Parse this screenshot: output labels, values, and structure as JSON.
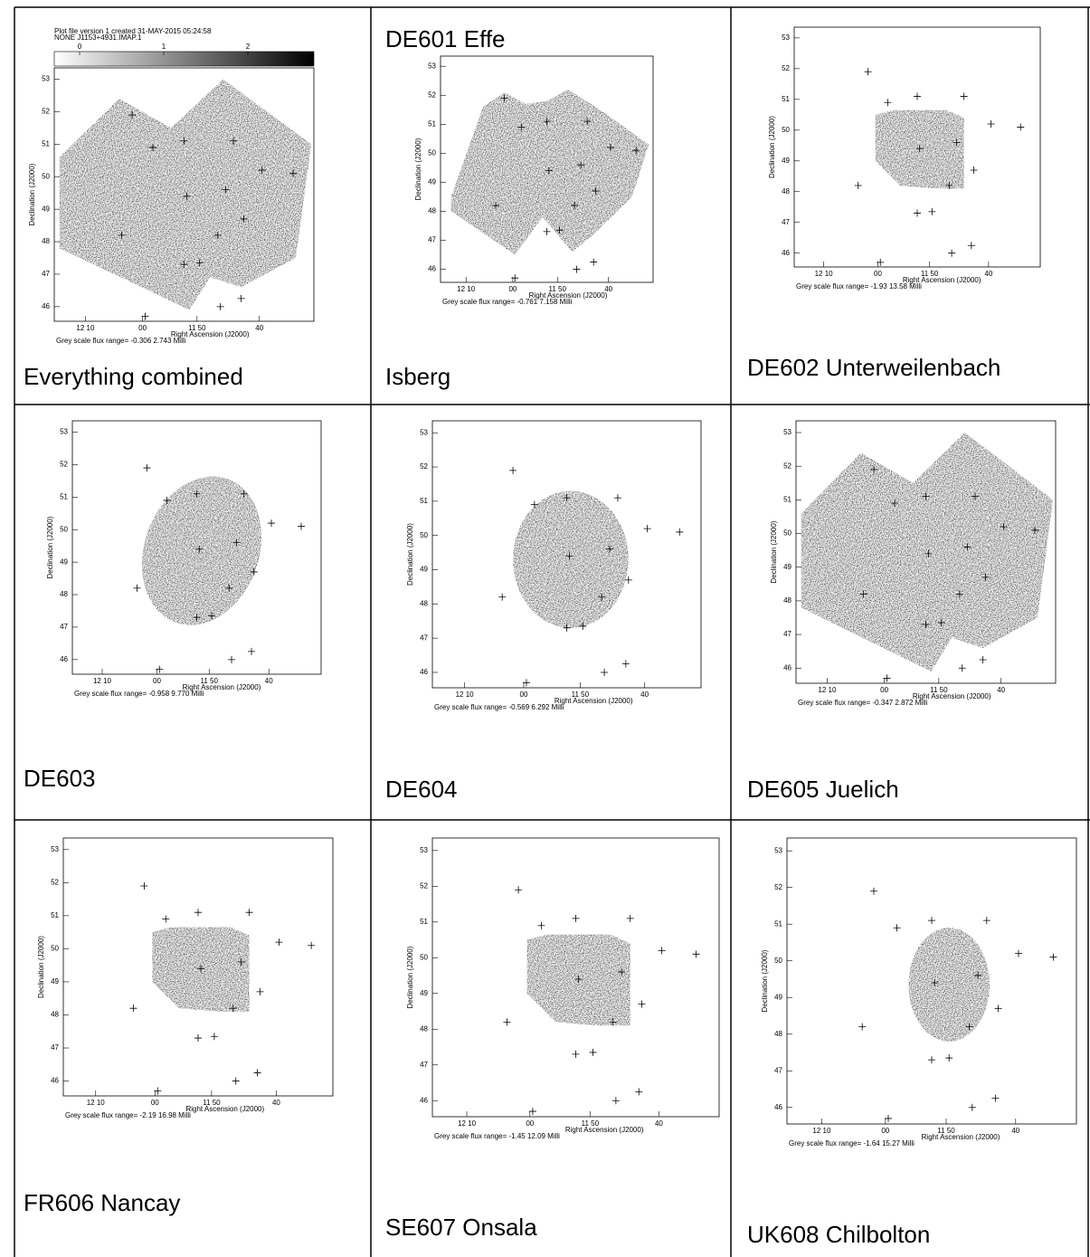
{
  "panels": [
    {
      "caption": "Everything combined",
      "plot": {
        "header": [
          "Plot file version 1  created 31-MAY-2015 05:24:58",
          "NONE  J1153+4931.IMAP.1"
        ],
        "colorbar_ticks": [
          0,
          1,
          2
        ],
        "yticks": [
          53,
          52,
          51,
          50,
          49,
          48,
          47,
          46
        ],
        "xticks": [
          "12 10",
          "00",
          "11 50",
          "40"
        ],
        "ylabel": "Declination (J2000)",
        "xlabel": "Right Ascension (J2000)",
        "flux": "Grey scale flux range= -0.306 2.743 Milli"
      }
    },
    {
      "top_caption": "DE601 Effe",
      "caption": "Isberg",
      "plot": {
        "yticks": [
          53,
          52,
          51,
          50,
          49,
          48,
          47,
          46
        ],
        "xticks": [
          "12 10",
          "00",
          "11 50",
          "40"
        ],
        "ylabel": "Declination (J2000)",
        "xlabel": "Right Ascension (J2000)",
        "flux": "Grey scale flux range= -0.761 7.158 Milli"
      }
    },
    {
      "caption": "DE602 Unterweilenbach",
      "plot": {
        "yticks": [
          53,
          52,
          51,
          50,
          49,
          48,
          47,
          46
        ],
        "xticks": [
          "12 10",
          "00",
          "11 50",
          "40"
        ],
        "ylabel": "Declination (J2000)",
        "xlabel": "Right Ascension (J2000)",
        "flux": "Grey scale flux range= -1.93 13.58 Milli"
      }
    },
    {
      "caption": "DE603",
      "plot": {
        "yticks": [
          53,
          52,
          51,
          50,
          49,
          48,
          47,
          46
        ],
        "xticks": [
          "12 10",
          "00",
          "11 50",
          "40"
        ],
        "ylabel": "Declination (J2000)",
        "xlabel": "Right Ascension (J2000)",
        "flux": "Grey scale flux range= -0.958 9.770 Milli"
      }
    },
    {
      "caption": "DE604",
      "plot": {
        "yticks": [
          53,
          52,
          51,
          50,
          49,
          48,
          47,
          46
        ],
        "xticks": [
          "12 10",
          "00",
          "11 50",
          "40"
        ],
        "ylabel": "Declination (J2000)",
        "xlabel": "Right Ascension (J2000)",
        "flux": "Grey scale flux range= -0.569 6.292 Milli"
      }
    },
    {
      "caption": "DE605 Juelich",
      "plot": {
        "yticks": [
          53,
          52,
          51,
          50,
          49,
          48,
          47,
          46
        ],
        "xticks": [
          "12 10",
          "00",
          "11 50",
          "40"
        ],
        "ylabel": "Declination (J2000)",
        "xlabel": "Right Ascension (J2000)",
        "flux": "Grey scale flux range= -0.347 2.872 Milli"
      }
    },
    {
      "caption": "FR606 Nancay",
      "plot": {
        "yticks": [
          53,
          52,
          51,
          50,
          49,
          48,
          47,
          46
        ],
        "xticks": [
          "12 10",
          "00",
          "11 50",
          "40"
        ],
        "ylabel": "Declination (J2000)",
        "xlabel": "Right Ascension (J2000)",
        "flux": "Grey scale flux range= -2.19 16.98 Milli"
      }
    },
    {
      "caption": "SE607 Onsala",
      "plot": {
        "yticks": [
          53,
          52,
          51,
          50,
          49,
          48,
          47,
          46
        ],
        "xticks": [
          "12 10",
          "00",
          "11 50",
          "40"
        ],
        "ylabel": "Declination (J2000)",
        "xlabel": "Right Ascension (J2000)",
        "flux": "Grey scale flux range= -1.45 12.09 Milli"
      }
    },
    {
      "caption": "UK608 Chilbolton",
      "plot": {
        "yticks": [
          53,
          52,
          51,
          50,
          49,
          48,
          47,
          46
        ],
        "xticks": [
          "12 10",
          "00",
          "11 50",
          "40"
        ],
        "ylabel": "Declination (J2000)",
        "xlabel": "Right Ascension (J2000)",
        "flux": "Grey scale flux range= -1.64 15.27 Milli"
      }
    }
  ]
}
